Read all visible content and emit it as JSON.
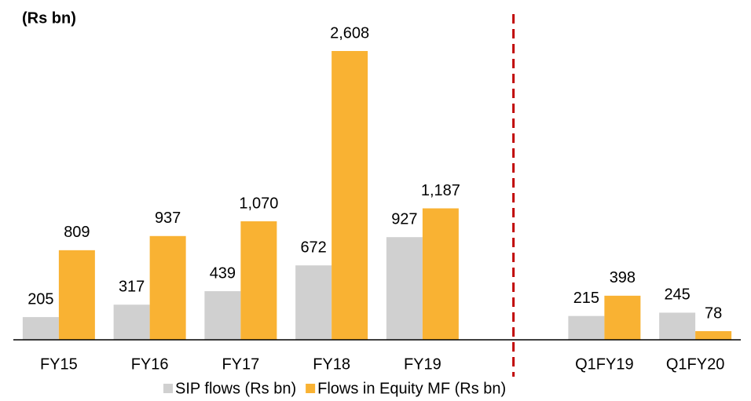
{
  "chart_data": {
    "type": "bar",
    "title": "(Rs bn)",
    "categories": [
      "FY15",
      "FY16",
      "FY17",
      "FY18",
      "FY19",
      null,
      "Q1FY19",
      "Q1FY20"
    ],
    "series": [
      {
        "name": "SIP flows (Rs bn)",
        "color": "#d0d0d0",
        "values": [
          205,
          317,
          439,
          672,
          927,
          null,
          215,
          245
        ],
        "value_labels": [
          "205",
          "317",
          "439",
          "672",
          "927",
          null,
          "215",
          "245"
        ]
      },
      {
        "name": "Flows in Equity MF (Rs bn)",
        "color": "#f9b233",
        "values": [
          809,
          937,
          1070,
          2608,
          1187,
          null,
          398,
          78
        ],
        "value_labels": [
          "809",
          "937",
          "1,070",
          "2,608",
          "1,187",
          null,
          "398",
          "78"
        ]
      }
    ],
    "legend": "bottom"
  }
}
